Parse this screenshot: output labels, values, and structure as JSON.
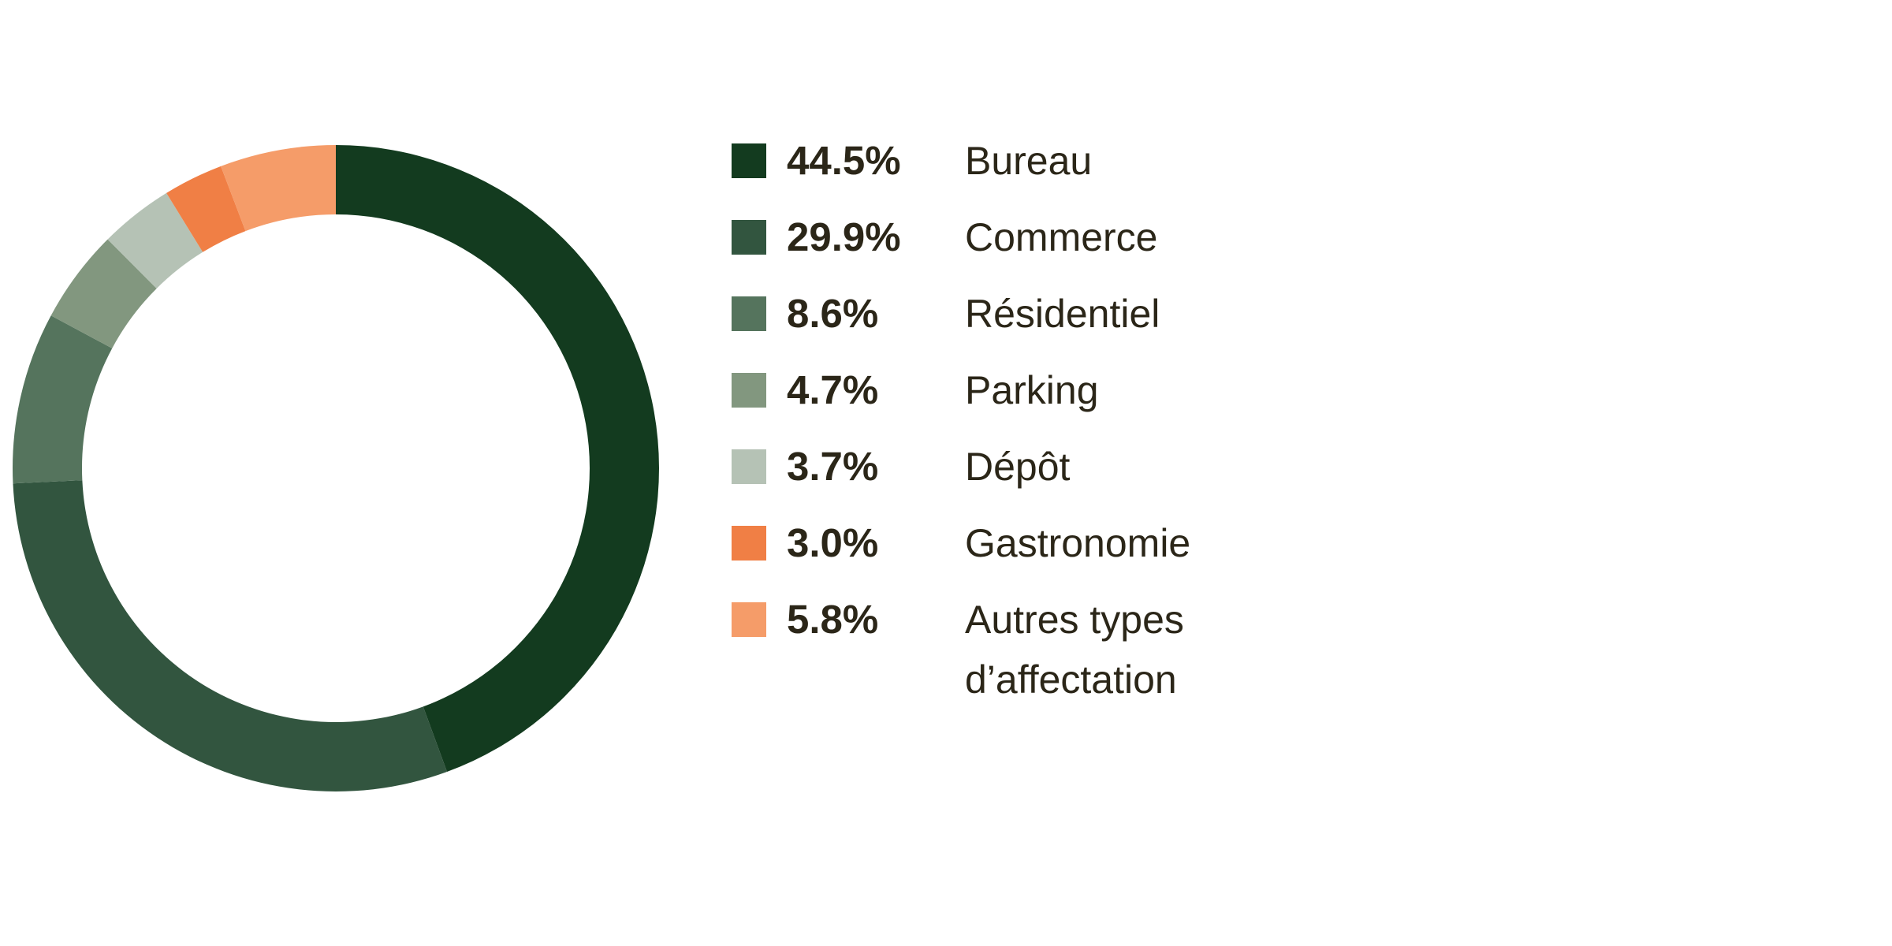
{
  "chart_data": {
    "type": "pie",
    "variant": "donut",
    "segments": [
      {
        "label": "Bureau",
        "value_label": "44.5%",
        "value": 44.5,
        "color": "#133b1f"
      },
      {
        "label": "Commerce",
        "value_label": "29.9%",
        "value": 29.9,
        "color": "#32553f"
      },
      {
        "label": "Résidentiel",
        "value_label": "8.6%",
        "value": 8.6,
        "color": "#55745d"
      },
      {
        "label": "Parking",
        "value_label": "4.7%",
        "value": 4.7,
        "color": "#82977f"
      },
      {
        "label": "Dépôt",
        "value_label": "3.7%",
        "value": 3.7,
        "color": "#b5c2b5"
      },
      {
        "label": "Gastronomie",
        "value_label": "3.0%",
        "value": 3.0,
        "color": "#f07f45"
      },
      {
        "label": "Autres types\nd’affectation",
        "value_label": "5.8%",
        "value": 5.8,
        "color": "#f59c69"
      }
    ],
    "legend_position": "right",
    "start": "top",
    "direction": "clockwise"
  }
}
